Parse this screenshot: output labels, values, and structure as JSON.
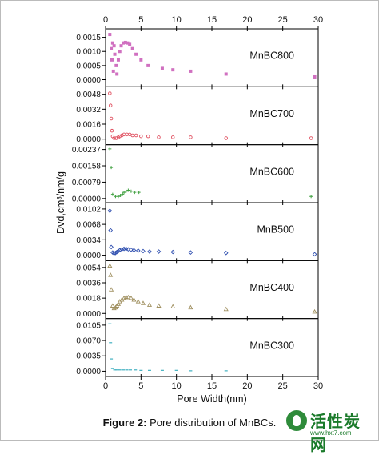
{
  "figure": {
    "caption_label": "Figure 2:",
    "caption_text": " Pore distribution of MnBCs.",
    "watermark_text": "活性炭网",
    "watermark_url": "www.hxt7.com"
  },
  "chart_data": {
    "type": "scatter",
    "xlabel": "Pore Width(nm)",
    "ylabel": "Dvd,cm³/nm/g",
    "xlim": [
      0,
      30
    ],
    "xticks": [
      0,
      5,
      10,
      15,
      20,
      25,
      30
    ],
    "top_xticks": [
      0,
      5,
      10,
      15,
      20,
      25,
      30
    ],
    "panels": [
      {
        "name": "MnBC800",
        "color": "#d070c0",
        "marker": "square",
        "ylim": [
          -0.00025,
          0.0018
        ],
        "yticks": [
          0.0,
          0.0005,
          0.001,
          0.0015
        ],
        "ytick_labels": [
          "0.0000",
          "0.0005",
          "0.0010",
          "0.0015"
        ],
        "points": [
          [
            0.6,
            0.0016
          ],
          [
            0.8,
            0.0011
          ],
          [
            0.9,
            0.0007
          ],
          [
            1.0,
            0.0013
          ],
          [
            1.1,
            0.0003
          ],
          [
            1.2,
            0.0012
          ],
          [
            1.3,
            0.0009
          ],
          [
            1.5,
            0.0005
          ],
          [
            1.6,
            0.0002
          ],
          [
            1.8,
            0.0007
          ],
          [
            2.0,
            0.001
          ],
          [
            2.2,
            0.0012
          ],
          [
            2.5,
            0.0013
          ],
          [
            2.8,
            0.00132
          ],
          [
            3.1,
            0.0013
          ],
          [
            3.4,
            0.00125
          ],
          [
            3.8,
            0.0011
          ],
          [
            4.3,
            0.0009
          ],
          [
            5.0,
            0.0007
          ],
          [
            6.0,
            0.0005
          ],
          [
            8.0,
            0.0004
          ],
          [
            9.5,
            0.00035
          ],
          [
            12.0,
            0.0003
          ],
          [
            17.0,
            0.0002
          ],
          [
            29.5,
            0.0001
          ]
        ]
      },
      {
        "name": "MnBC700",
        "color": "#e05060",
        "marker": "circle",
        "ylim": [
          -0.0006,
          0.0056
        ],
        "yticks": [
          0.0,
          0.0016,
          0.0032,
          0.0048
        ],
        "ytick_labels": [
          "0.0000",
          "0.0016",
          "0.0032",
          "0.0048"
        ],
        "points": [
          [
            0.6,
            0.0049
          ],
          [
            0.7,
            0.0036
          ],
          [
            0.8,
            0.0022
          ],
          [
            0.9,
            0.0009
          ],
          [
            1.0,
            0.0003
          ],
          [
            1.2,
            0.0001
          ],
          [
            1.5,
            0.0001
          ],
          [
            1.8,
            0.0002
          ],
          [
            2.0,
            0.0003
          ],
          [
            2.3,
            0.0004
          ],
          [
            2.6,
            0.0005
          ],
          [
            3.0,
            0.0005
          ],
          [
            3.4,
            0.0005
          ],
          [
            3.8,
            0.0004
          ],
          [
            4.3,
            0.0004
          ],
          [
            5.0,
            0.0003
          ],
          [
            6.0,
            0.0003
          ],
          [
            7.5,
            0.0002
          ],
          [
            9.5,
            0.0002
          ],
          [
            12.0,
            0.0002
          ],
          [
            17.0,
            0.0001
          ],
          [
            29.0,
            0.0001
          ]
        ]
      },
      {
        "name": "MnBC600",
        "color": "#40a040",
        "marker": "plus",
        "ylim": [
          -0.0002,
          0.0026
        ],
        "yticks": [
          0.0,
          0.00079,
          0.00158,
          0.00237
        ],
        "ytick_labels": [
          "0.00000",
          "0.00079",
          "0.00158",
          "0.00237"
        ],
        "points": [
          [
            0.6,
            0.0024
          ],
          [
            0.8,
            0.0015
          ],
          [
            1.0,
            0.0002
          ],
          [
            1.4,
            0.0001
          ],
          [
            1.8,
            0.0001
          ],
          [
            2.1,
            0.00015
          ],
          [
            2.4,
            0.0002
          ],
          [
            2.6,
            0.0003
          ],
          [
            2.9,
            0.00035
          ],
          [
            3.2,
            0.0004
          ],
          [
            3.6,
            0.00035
          ],
          [
            4.1,
            0.0003
          ],
          [
            4.7,
            0.0003
          ],
          [
            29.0,
            0.0001
          ]
        ]
      },
      {
        "name": "MnB500",
        "color": "#3050b0",
        "marker": "diamond",
        "ylim": [
          -0.0012,
          0.0116
        ],
        "yticks": [
          0.0,
          0.0034,
          0.0068,
          0.0102
        ],
        "ytick_labels": [
          "0.0000",
          "0.0034",
          "0.0068",
          "0.0102"
        ],
        "points": [
          [
            0.6,
            0.0098
          ],
          [
            0.7,
            0.0055
          ],
          [
            0.8,
            0.0018
          ],
          [
            1.0,
            0.0006
          ],
          [
            1.2,
            0.0004
          ],
          [
            1.4,
            0.0005
          ],
          [
            1.6,
            0.0007
          ],
          [
            1.8,
            0.0009
          ],
          [
            2.0,
            0.0011
          ],
          [
            2.3,
            0.0013
          ],
          [
            2.6,
            0.0014
          ],
          [
            2.9,
            0.0014
          ],
          [
            3.2,
            0.0013
          ],
          [
            3.6,
            0.0012
          ],
          [
            4.0,
            0.0011
          ],
          [
            4.6,
            0.001
          ],
          [
            5.3,
            0.0009
          ],
          [
            6.2,
            0.0008
          ],
          [
            7.5,
            0.0008
          ],
          [
            9.5,
            0.0007
          ],
          [
            12.0,
            0.0006
          ],
          [
            17.0,
            0.0005
          ],
          [
            29.5,
            0.0002
          ]
        ]
      },
      {
        "name": "MnBC400",
        "color": "#a09060",
        "marker": "triangle",
        "ylim": [
          -0.0006,
          0.0062
        ],
        "yticks": [
          0.0,
          0.0018,
          0.0036,
          0.0054
        ],
        "ytick_labels": [
          "0.0000",
          "0.0018",
          "0.0036",
          "0.0054"
        ],
        "points": [
          [
            0.6,
            0.0056
          ],
          [
            0.7,
            0.0045
          ],
          [
            0.8,
            0.0028
          ],
          [
            1.0,
            0.0009
          ],
          [
            1.2,
            0.0006
          ],
          [
            1.4,
            0.0007
          ],
          [
            1.6,
            0.0009
          ],
          [
            1.8,
            0.0011
          ],
          [
            2.0,
            0.0014
          ],
          [
            2.3,
            0.0016
          ],
          [
            2.6,
            0.0018
          ],
          [
            2.9,
            0.0019
          ],
          [
            3.2,
            0.0019
          ],
          [
            3.6,
            0.0018
          ],
          [
            4.0,
            0.0016
          ],
          [
            4.6,
            0.0014
          ],
          [
            5.3,
            0.0012
          ],
          [
            6.2,
            0.001
          ],
          [
            7.5,
            0.0009
          ],
          [
            9.5,
            0.0008
          ],
          [
            12.0,
            0.0007
          ],
          [
            17.0,
            0.0005
          ],
          [
            29.5,
            0.0002
          ]
        ]
      },
      {
        "name": "MnBC300",
        "color": "#40b0c0",
        "marker": "dash",
        "ylim": [
          -0.0012,
          0.012
        ],
        "yticks": [
          0.0,
          0.0035,
          0.007,
          0.0105
        ],
        "ytick_labels": [
          "0.0000",
          "0.0035",
          "0.0070",
          "0.0105"
        ],
        "points": [
          [
            0.6,
            0.0108
          ],
          [
            0.7,
            0.0065
          ],
          [
            0.8,
            0.0028
          ],
          [
            1.0,
            0.0006
          ],
          [
            1.3,
            0.0003
          ],
          [
            1.6,
            0.0003
          ],
          [
            2.0,
            0.0003
          ],
          [
            2.5,
            0.0003
          ],
          [
            3.0,
            0.0003
          ],
          [
            3.5,
            0.0003
          ],
          [
            4.2,
            0.0003
          ],
          [
            5.0,
            0.0002
          ],
          [
            6.2,
            0.0002
          ],
          [
            8.0,
            0.0002
          ],
          [
            10.0,
            0.0002
          ],
          [
            12.0,
            0.0001
          ],
          [
            17.0,
            0.0001
          ]
        ]
      }
    ]
  }
}
